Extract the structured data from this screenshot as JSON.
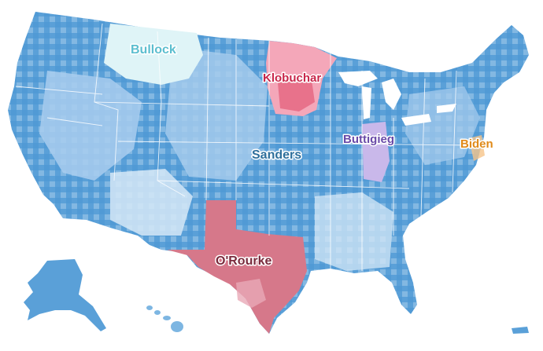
{
  "map": {
    "colors": {
      "sanders": "#5aa0d8",
      "sanders_light": "#a9cdee",
      "sanders_pale": "#d6e8f7",
      "orourke": "#d6788a",
      "orourke_light": "#e8a9b6",
      "klobuchar": "#f4a7b9",
      "klobuchar_dark": "#e4607c",
      "bullock": "#dff4f7",
      "buttigieg": "#c9b8ea",
      "biden": "#f6c48a",
      "state_border": "#ffffff"
    },
    "labels": [
      {
        "id": "sanders",
        "text": "Sanders",
        "color": "#2d6f9c"
      },
      {
        "id": "orourke",
        "text": "O'Rourke",
        "color": "#7a2a3c"
      },
      {
        "id": "klobuchar",
        "text": "Klobuchar",
        "color": "#c8264a"
      },
      {
        "id": "bullock",
        "text": "Bullock",
        "color": "#5cbecf"
      },
      {
        "id": "buttigieg",
        "text": "Buttigieg",
        "color": "#6a4aa8"
      },
      {
        "id": "biden",
        "text": "Biden",
        "color": "#e08a1a"
      }
    ]
  }
}
